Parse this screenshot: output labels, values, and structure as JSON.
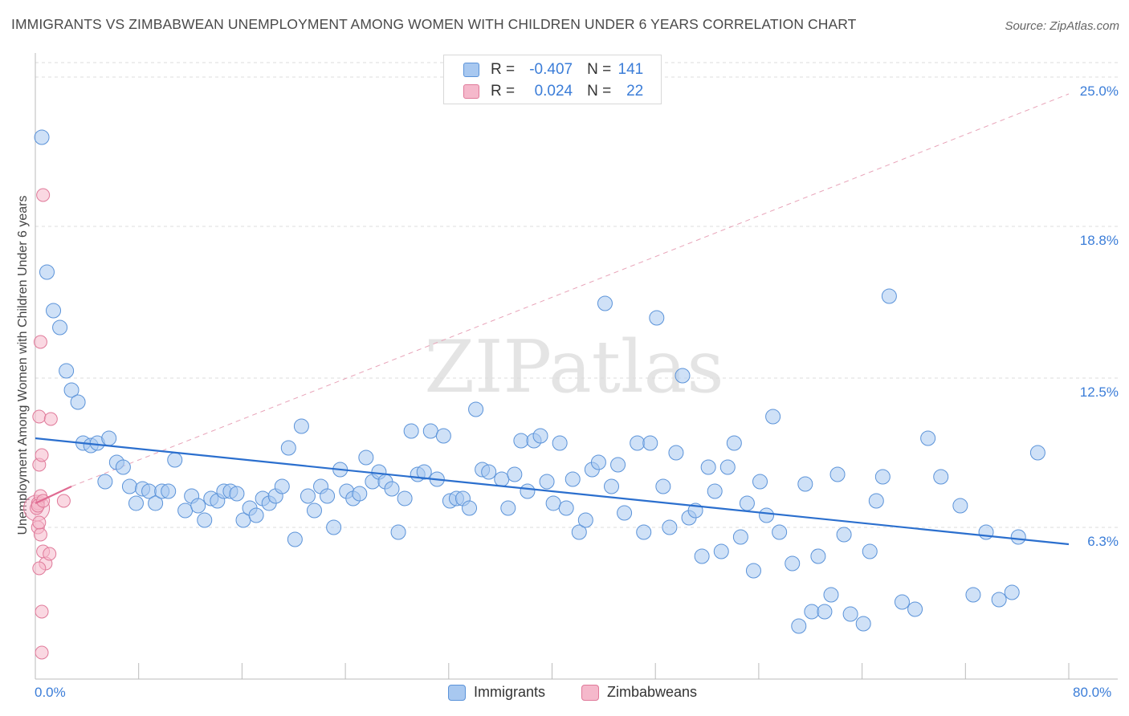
{
  "title": "IMMIGRANTS VS ZIMBABWEAN UNEMPLOYMENT AMONG WOMEN WITH CHILDREN UNDER 6 YEARS CORRELATION CHART",
  "source": "Source: ZipAtlas.com",
  "watermark": "ZIPatlas",
  "legend": {
    "rows": [
      {
        "r_label": "R = ",
        "r_value": "-0.407",
        "n_label": "N = ",
        "n_value": "141"
      },
      {
        "r_label": "R = ",
        "r_value": "0.024",
        "n_label": "N = ",
        "n_value": "22"
      }
    ]
  },
  "colors": {
    "immigrants_fill": "#a8c8f0",
    "immigrants_stroke": "#5b93d9",
    "immigrants_line": "#2b6fce",
    "zimbabweans_fill": "#f5b8cb",
    "zimbabweans_stroke": "#e07a9a",
    "zimbabweans_line": "#e06b92",
    "tick_label": "#3b7dd8",
    "grid": "#dddddd"
  },
  "chart_data": {
    "type": "scatter",
    "title": "IMMIGRANTS VS ZIMBABWEAN UNEMPLOYMENT AMONG WOMEN WITH CHILDREN UNDER 6 YEARS CORRELATION CHART",
    "xlabel": "",
    "ylabel": "Unemployment Among Women with Children Under 6 years",
    "xlim": [
      0,
      80
    ],
    "ylim": [
      0,
      25.6
    ],
    "x_tick_labels": [
      "0.0%",
      "80.0%"
    ],
    "y_ticks": [
      6.3,
      12.5,
      18.8,
      25.0
    ],
    "y_tick_labels": [
      "6.3%",
      "12.5%",
      "18.8%",
      "25.0%"
    ],
    "grid": true,
    "legend_position": "top-center",
    "series": [
      {
        "name": "Immigrants",
        "trend": {
          "x": [
            0,
            80
          ],
          "y": [
            10.0,
            5.6
          ]
        },
        "points": [
          [
            0.5,
            22.5
          ],
          [
            0.9,
            16.9
          ],
          [
            1.4,
            15.3
          ],
          [
            1.9,
            14.6
          ],
          [
            2.4,
            12.8
          ],
          [
            2.8,
            12.0
          ],
          [
            3.3,
            11.5
          ],
          [
            3.7,
            9.8
          ],
          [
            4.3,
            9.7
          ],
          [
            4.8,
            9.8
          ],
          [
            5.7,
            10.0
          ],
          [
            6.3,
            9.0
          ],
          [
            6.8,
            8.8
          ],
          [
            5.4,
            8.2
          ],
          [
            7.3,
            8.0
          ],
          [
            7.8,
            7.3
          ],
          [
            8.3,
            7.9
          ],
          [
            8.8,
            7.8
          ],
          [
            9.3,
            7.3
          ],
          [
            9.8,
            7.8
          ],
          [
            10.3,
            7.8
          ],
          [
            10.8,
            9.1
          ],
          [
            11.6,
            7.0
          ],
          [
            12.1,
            7.6
          ],
          [
            12.6,
            7.2
          ],
          [
            13.1,
            6.6
          ],
          [
            13.6,
            7.5
          ],
          [
            14.1,
            7.4
          ],
          [
            14.6,
            7.8
          ],
          [
            15.1,
            7.8
          ],
          [
            15.6,
            7.7
          ],
          [
            16.1,
            6.6
          ],
          [
            16.6,
            7.1
          ],
          [
            17.1,
            6.8
          ],
          [
            17.6,
            7.5
          ],
          [
            18.1,
            7.3
          ],
          [
            18.6,
            7.6
          ],
          [
            19.1,
            8.0
          ],
          [
            19.6,
            9.6
          ],
          [
            20.1,
            5.8
          ],
          [
            20.6,
            10.5
          ],
          [
            21.1,
            7.6
          ],
          [
            21.6,
            7.0
          ],
          [
            22.1,
            8.0
          ],
          [
            22.6,
            7.6
          ],
          [
            23.1,
            6.3
          ],
          [
            23.6,
            8.7
          ],
          [
            24.1,
            7.8
          ],
          [
            24.6,
            7.5
          ],
          [
            25.1,
            7.7
          ],
          [
            25.6,
            9.2
          ],
          [
            26.1,
            8.2
          ],
          [
            26.6,
            8.6
          ],
          [
            27.1,
            8.2
          ],
          [
            27.6,
            7.9
          ],
          [
            28.1,
            6.1
          ],
          [
            28.6,
            7.5
          ],
          [
            29.1,
            10.3
          ],
          [
            29.6,
            8.5
          ],
          [
            30.1,
            8.6
          ],
          [
            30.6,
            10.3
          ],
          [
            31.1,
            8.3
          ],
          [
            31.6,
            10.1
          ],
          [
            32.1,
            7.4
          ],
          [
            32.6,
            7.5
          ],
          [
            33.1,
            7.5
          ],
          [
            33.6,
            7.1
          ],
          [
            34.1,
            11.2
          ],
          [
            34.6,
            8.7
          ],
          [
            35.1,
            8.6
          ],
          [
            36.1,
            8.3
          ],
          [
            36.6,
            7.1
          ],
          [
            37.1,
            8.5
          ],
          [
            37.6,
            9.9
          ],
          [
            38.1,
            7.8
          ],
          [
            38.6,
            9.9
          ],
          [
            39.1,
            10.1
          ],
          [
            39.6,
            8.2
          ],
          [
            40.1,
            7.3
          ],
          [
            40.6,
            9.8
          ],
          [
            41.1,
            7.1
          ],
          [
            41.6,
            8.3
          ],
          [
            42.1,
            6.1
          ],
          [
            42.6,
            6.6
          ],
          [
            43.1,
            8.7
          ],
          [
            43.6,
            9.0
          ],
          [
            44.1,
            15.6
          ],
          [
            44.6,
            8.0
          ],
          [
            45.1,
            8.9
          ],
          [
            45.6,
            6.9
          ],
          [
            46.6,
            9.8
          ],
          [
            47.1,
            6.1
          ],
          [
            47.6,
            9.8
          ],
          [
            48.1,
            15.0
          ],
          [
            48.6,
            8.0
          ],
          [
            49.1,
            6.3
          ],
          [
            49.6,
            9.4
          ],
          [
            50.1,
            12.6
          ],
          [
            50.6,
            6.7
          ],
          [
            51.1,
            7.0
          ],
          [
            51.6,
            5.1
          ],
          [
            52.1,
            8.8
          ],
          [
            52.6,
            7.8
          ],
          [
            53.1,
            5.3
          ],
          [
            53.6,
            8.8
          ],
          [
            54.1,
            9.8
          ],
          [
            54.6,
            5.9
          ],
          [
            55.1,
            7.3
          ],
          [
            55.6,
            4.5
          ],
          [
            56.1,
            8.2
          ],
          [
            56.6,
            6.8
          ],
          [
            57.1,
            10.9
          ],
          [
            57.6,
            6.1
          ],
          [
            58.6,
            4.8
          ],
          [
            59.1,
            2.2
          ],
          [
            59.6,
            8.1
          ],
          [
            60.1,
            2.8
          ],
          [
            60.6,
            5.1
          ],
          [
            61.1,
            2.8
          ],
          [
            61.6,
            3.5
          ],
          [
            62.1,
            8.5
          ],
          [
            62.6,
            6.0
          ],
          [
            63.1,
            2.7
          ],
          [
            64.1,
            2.3
          ],
          [
            64.6,
            5.3
          ],
          [
            65.1,
            7.4
          ],
          [
            65.6,
            8.4
          ],
          [
            66.1,
            15.9
          ],
          [
            67.1,
            3.2
          ],
          [
            68.1,
            2.9
          ],
          [
            69.1,
            10.0
          ],
          [
            70.1,
            8.4
          ],
          [
            71.6,
            7.2
          ],
          [
            72.6,
            3.5
          ],
          [
            73.6,
            6.1
          ],
          [
            74.6,
            3.3
          ],
          [
            75.6,
            3.6
          ],
          [
            76.1,
            5.9
          ],
          [
            77.6,
            9.4
          ]
        ]
      },
      {
        "name": "Zimbabweans",
        "trend": {
          "x": [
            0,
            2.8
          ],
          "y": [
            7.3,
            8.0
          ]
        },
        "points": [
          [
            0.2,
            7.3
          ],
          [
            0.4,
            7.6
          ],
          [
            0.3,
            8.9
          ],
          [
            0.5,
            9.3
          ],
          [
            0.6,
            20.1
          ],
          [
            0.4,
            14.0
          ],
          [
            0.3,
            10.9
          ],
          [
            1.2,
            10.8
          ],
          [
            2.2,
            7.4
          ],
          [
            0.2,
            6.3
          ],
          [
            0.4,
            6.0
          ],
          [
            0.6,
            5.3
          ],
          [
            0.8,
            4.8
          ],
          [
            1.1,
            5.2
          ],
          [
            0.3,
            4.6
          ],
          [
            0.5,
            2.8
          ],
          [
            0.5,
            1.1
          ],
          [
            0.1,
            7.1
          ],
          [
            0.2,
            7.2
          ],
          [
            0.6,
            7.4
          ],
          [
            0.3,
            6.5
          ],
          [
            1.0,
            7.5
          ]
        ]
      }
    ]
  },
  "axis": {
    "x_left_label": "0.0%",
    "x_right_label": "80.0%"
  },
  "bottom_legend": [
    {
      "label": "Immigrants"
    },
    {
      "label": "Zimbabweans"
    }
  ]
}
